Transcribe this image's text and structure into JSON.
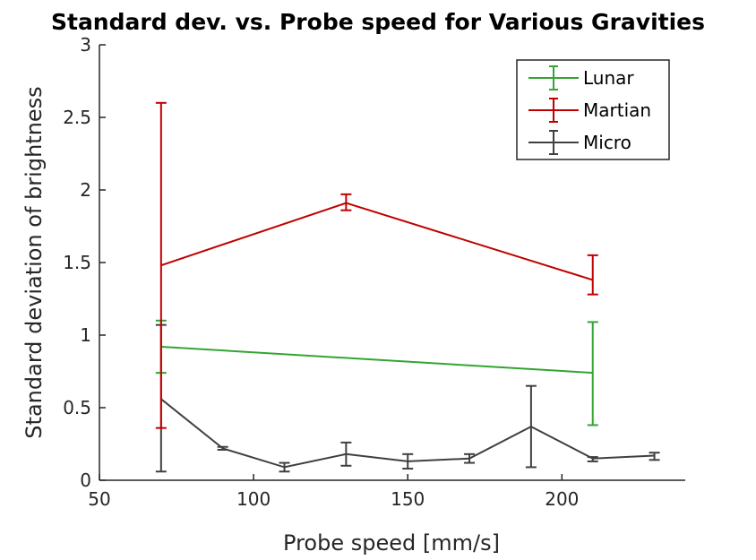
{
  "chart_data": {
    "type": "line",
    "title": "Standard dev. vs. Probe speed for Various Gravities",
    "xlabel": "Probe speed [mm/s]",
    "ylabel": "Standard deviation of brightness",
    "xlim": [
      50,
      240
    ],
    "ylim": [
      0,
      3
    ],
    "xticks": [
      50,
      100,
      150,
      200
    ],
    "yticks": [
      0,
      0.5,
      1,
      1.5,
      2,
      2.5,
      3
    ],
    "xtick_labels": [
      "50",
      "100",
      "150",
      "200"
    ],
    "ytick_labels": [
      "0",
      "0.5",
      "1",
      "1.5",
      "2",
      "2.5",
      "3"
    ],
    "grid": false,
    "legend_position": "top-right",
    "error_bars": true,
    "series": [
      {
        "name": "Lunar",
        "color": "#33a532",
        "x": [
          70,
          210
        ],
        "y": [
          0.92,
          0.74
        ],
        "err_low": [
          0.18,
          0.36
        ],
        "err_high": [
          0.18,
          0.35
        ]
      },
      {
        "name": "Martian",
        "color": "#c00000",
        "x": [
          70,
          130,
          210
        ],
        "y": [
          1.48,
          1.91,
          1.38
        ],
        "err_low": [
          1.12,
          0.05,
          0.1
        ],
        "err_high": [
          1.12,
          0.06,
          0.17
        ]
      },
      {
        "name": "Micro",
        "color": "#404040",
        "x": [
          70,
          90,
          110,
          130,
          150,
          170,
          190,
          210,
          230
        ],
        "y": [
          0.56,
          0.22,
          0.09,
          0.18,
          0.13,
          0.15,
          0.37,
          0.15,
          0.17
        ],
        "err_low": [
          0.5,
          0.01,
          0.03,
          0.08,
          0.05,
          0.03,
          0.28,
          0.02,
          0.03
        ],
        "err_high": [
          0.51,
          0.01,
          0.03,
          0.08,
          0.05,
          0.03,
          0.28,
          0.01,
          0.02
        ]
      }
    ]
  }
}
